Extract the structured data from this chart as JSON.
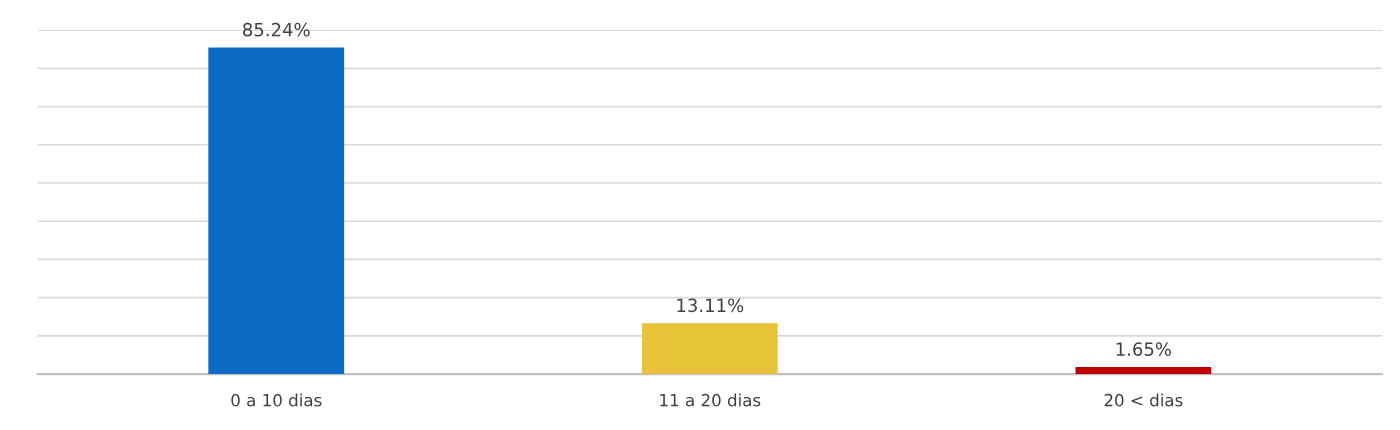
{
  "chart_data": {
    "type": "bar",
    "categories": [
      "0 a 10 dias",
      "11 a 20 dias",
      "20 < dias"
    ],
    "values": [
      85.24,
      13.11,
      1.65
    ],
    "colors": [
      "#0a6cc4",
      "#e8c33a",
      "#c00000"
    ],
    "value_labels": [
      "85.24%",
      "13.11%",
      "1.65%"
    ],
    "ylim": [
      0,
      90
    ],
    "yticks": [
      {
        "value": 0,
        "label": null
      },
      {
        "value": 10,
        "label": null
      },
      {
        "value": 20,
        "label": null
      },
      {
        "value": 30,
        "label": null
      },
      {
        "value": 40,
        "label": null
      },
      {
        "value": 50,
        "label": null
      },
      {
        "value": 60,
        "label": null
      },
      {
        "value": 70,
        "label": null
      },
      {
        "value": 80,
        "label": null
      },
      {
        "value": 90,
        "label": null
      }
    ],
    "grid": "y",
    "tick_labels": "x"
  }
}
